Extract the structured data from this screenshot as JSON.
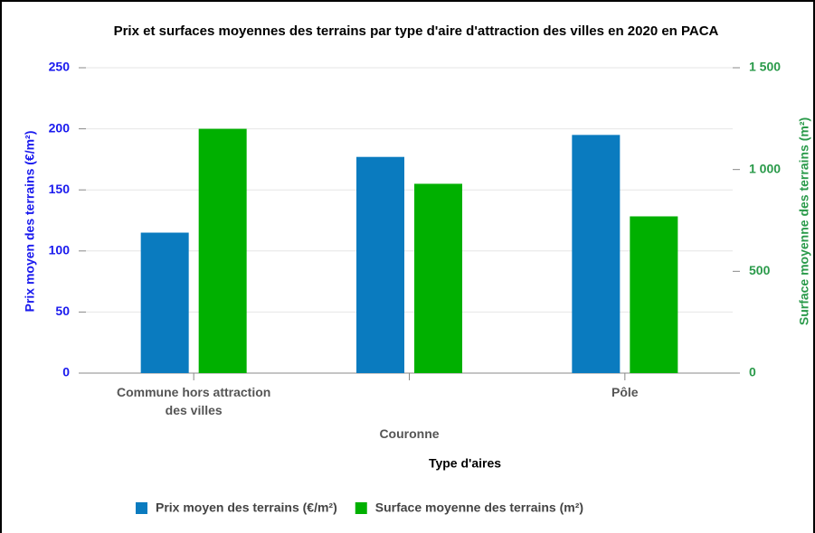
{
  "chart_data": {
    "type": "bar",
    "title": "Prix et surfaces moyennes des terrains par type d'aire d'attraction des villes en 2020 en PACA",
    "xlabel": "Type d'aires",
    "ylabel": "Prix moyen des terrains (€/m²)",
    "y2label": "Surface moyenne des terrains (m²)",
    "categories": [
      "Commune hors attraction des villes",
      "Couronne",
      "Pôle"
    ],
    "series": [
      {
        "name": "Prix moyen des terrains (€/m²)",
        "color": "#0a7bbf",
        "values": [
          115,
          177,
          195
        ]
      },
      {
        "name": "Surface moyenne des terrains (m²)",
        "color": "#00b000",
        "axis": "y2",
        "values": [
          1200,
          930,
          770
        ]
      }
    ],
    "ylim": [
      0,
      250
    ],
    "yticks": [
      0,
      50,
      100,
      150,
      200,
      250
    ],
    "y2lim": [
      0,
      1500
    ],
    "y2ticks": [
      0,
      500,
      {
        "value": 1000,
        "label": "1 000"
      },
      {
        "value": 1500,
        "label": "1 500"
      }
    ],
    "ycolor": "#1a1aee",
    "y2color": "#2a9a4a",
    "grid": true,
    "legend": "bottom"
  }
}
